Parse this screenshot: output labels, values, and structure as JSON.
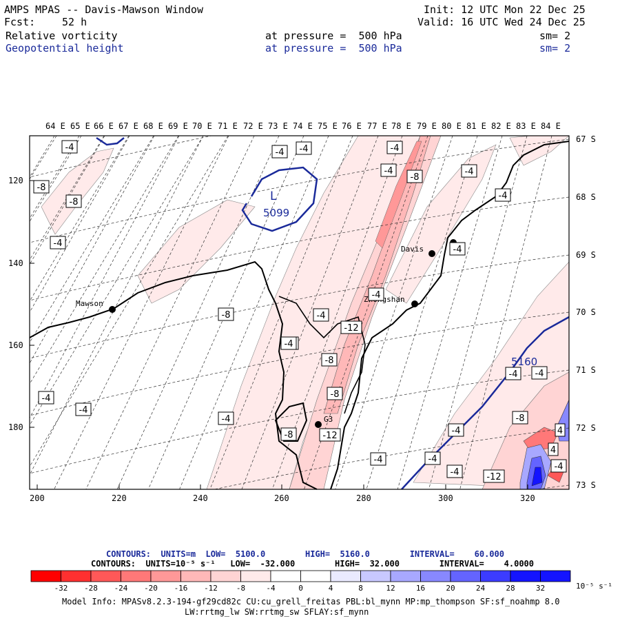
{
  "header": {
    "title": "AMPS MPAS -- Davis-Mawson Window",
    "fcst_label": "Fcst:",
    "fcst_value": "52 h",
    "init": "Init: 12 UTC Mon 22 Dec 25",
    "valid": "Valid: 16 UTC Wed 24 Dec 25",
    "field1": "Relative vorticity",
    "field1_level": "at pressure =  500 hPa",
    "field1_sm": "sm= 2",
    "field2": "Geopotential height",
    "field2_level": "at pressure =  500 hPa",
    "field2_sm": "sm= 2"
  },
  "top_lon_labels": [
    "64 E",
    "65 E",
    "66 E",
    "67 E",
    "68 E",
    "69 E",
    "70 E",
    "71 E",
    "72 E",
    "73 E",
    "74 E",
    "75 E",
    "76 E",
    "77 E",
    "78 E",
    "79 E",
    "80 E",
    "81 E",
    "82 E",
    "83 E",
    "84 E"
  ],
  "right_lat_labels": [
    "67 S",
    "68 S",
    "69 S",
    "70 S",
    "71 S",
    "72 S",
    "73 S"
  ],
  "left_grid_labels": [
    "120",
    "140",
    "160",
    "180"
  ],
  "bottom_grid_labels": [
    "200",
    "220",
    "240",
    "260",
    "280",
    "300",
    "320"
  ],
  "stations": [
    {
      "name": "Mawson"
    },
    {
      "name": "Davis"
    },
    {
      "name": "Zhongshan"
    },
    {
      "name": "G3"
    }
  ],
  "vort_labels": [
    "-4",
    "-8",
    "-4",
    "-4",
    "-8",
    "-4",
    "-8",
    "-4",
    "-4",
    "-4",
    "-4",
    "-4",
    "-8",
    "-4",
    "-4",
    "-12",
    "-4",
    "-8",
    "-8",
    "-12",
    "-8",
    "-4",
    "-4",
    "-4",
    "-4",
    "-4",
    "-4",
    "-4",
    "-8",
    "-4",
    "-4",
    "-12",
    "4",
    "4",
    "-4",
    "-4"
  ],
  "height_labels": {
    "low_letter": "L",
    "low_value": "5099",
    "contour_value": "5160"
  },
  "colorbar": {
    "line1": "CONTOURS:  UNITS=m  LOW=  5100.0        HIGH=  5160.0        INTERVAL=    60.000",
    "line2": "CONTOURS:  UNITS=10⁻⁵ s⁻¹   LOW=  -32.000        HIGH=  32.000        INTERVAL=    4.0000",
    "ticks": [
      "-32",
      "-28",
      "-24",
      "-20",
      "-16",
      "-12",
      "-8",
      "-4",
      "0",
      "4",
      "8",
      "12",
      "16",
      "20",
      "24",
      "28",
      "32"
    ],
    "unit": "10⁻⁵ s⁻¹",
    "colors": [
      "#ff0000",
      "#ff3030",
      "#ff5858",
      "#ff7878",
      "#ff9898",
      "#ffb8b8",
      "#ffd4d4",
      "#ffeaea",
      "#ffffff",
      "#ffffff",
      "#eaeaff",
      "#c8c8ff",
      "#a8a8ff",
      "#8888ff",
      "#6464ff",
      "#3c3cff",
      "#1414ff"
    ]
  },
  "footer": {
    "line1": "Model Info: MPASv8.2.3-194-gf29cd82c CU:cu_grell_freitas PBL:bl_mynn MP:mp_thompson SF:sf_noahmp 8.0",
    "line2": "LW:rrtmg_lw SW:rrtmg_sw SFLAY:sf_mynn"
  }
}
